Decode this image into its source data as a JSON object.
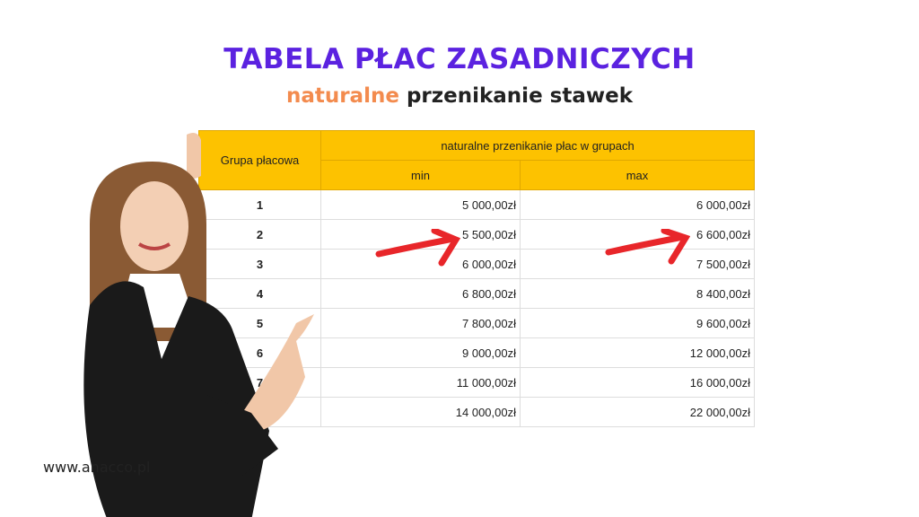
{
  "title": "TABELA PŁAC ZASADNICZYCH",
  "subtitle": {
    "highlight": "naturalne",
    "rest": " przenikanie stawek"
  },
  "colors": {
    "title": "#5b22e0",
    "highlight": "#f38b4e",
    "header_bg": "#fdc200",
    "arrow": "#e8262a"
  },
  "table": {
    "group_header": "Grupa płacowa",
    "span_header": "naturalne przenikanie płac w grupach",
    "min_header": "min",
    "max_header": "max",
    "rows": [
      {
        "group": "1",
        "min": "5 000,00zł",
        "max": "6 000,00zł"
      },
      {
        "group": "2",
        "min": "5 500,00zł",
        "max": "6 600,00zł"
      },
      {
        "group": "3",
        "min": "6 000,00zł",
        "max": "7 500,00zł"
      },
      {
        "group": "4",
        "min": "6 800,00zł",
        "max": "8 400,00zł"
      },
      {
        "group": "5",
        "min": "7 800,00zł",
        "max": "9 600,00zł"
      },
      {
        "group": "6",
        "min": "9 000,00zł",
        "max": "12 000,00zł"
      },
      {
        "group": "7",
        "min": "11 000,00zł",
        "max": "16 000,00zł"
      },
      {
        "group": "",
        "min": "14 000,00zł",
        "max": "22 000,00zł"
      }
    ]
  },
  "website": "www.anacco.pl"
}
